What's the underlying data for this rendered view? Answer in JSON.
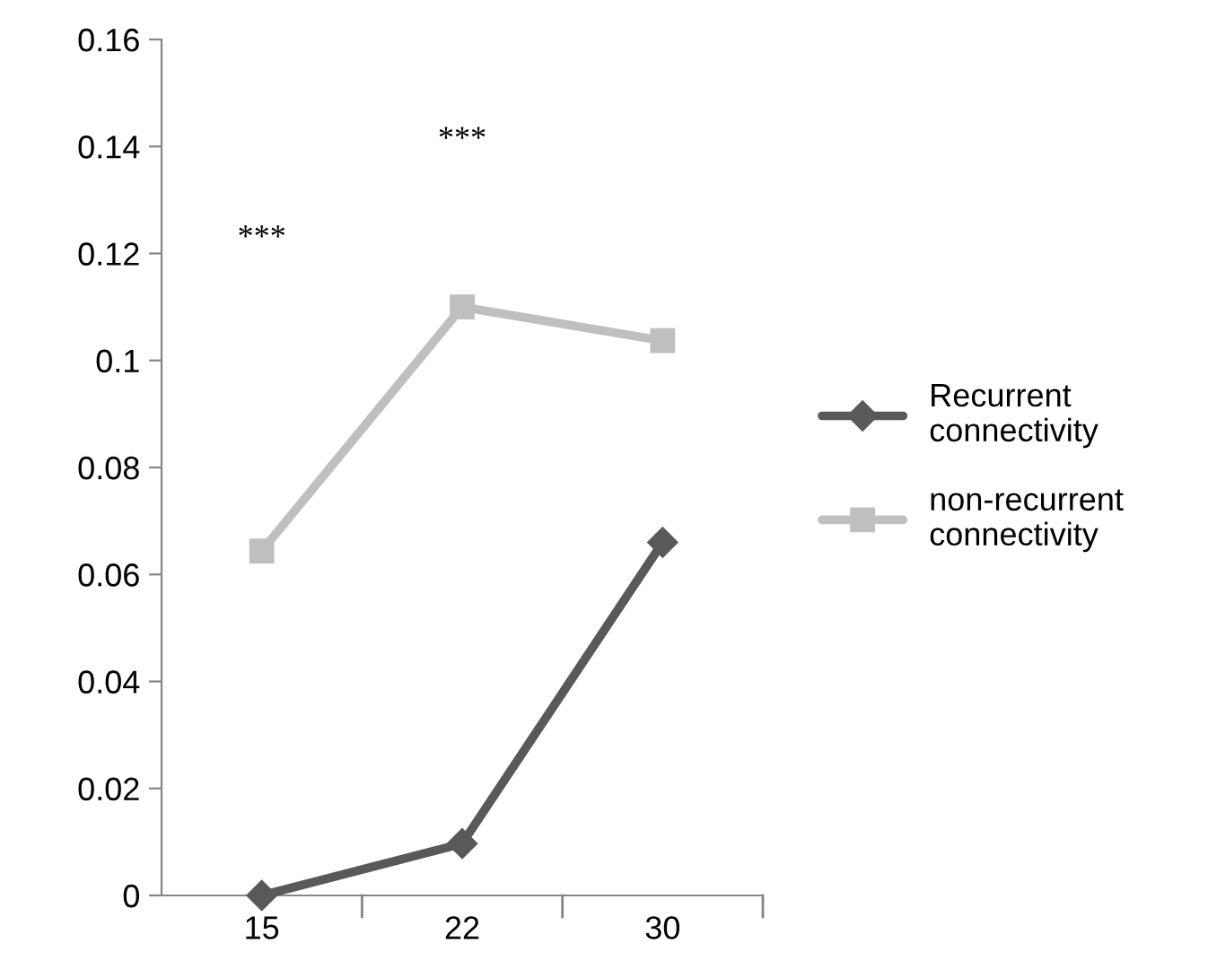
{
  "chart_data": {
    "type": "line",
    "categories": [
      "15",
      "22",
      "30"
    ],
    "series": [
      {
        "name": "Recurrent connectivity",
        "color": "#595959",
        "marker": "diamond",
        "values": [
          0,
          0.0097,
          0.066
        ]
      },
      {
        "name": "non-recurrent connectivity",
        "color": "#bfbfbf",
        "marker": "square",
        "values": [
          0.0644,
          0.11,
          0.1037
        ]
      }
    ],
    "ylim": [
      0,
      0.16
    ],
    "yticks": [
      0,
      0.02,
      0.04,
      0.06,
      0.08,
      0.1,
      0.12,
      0.14,
      0.16
    ],
    "annotations": [
      "***",
      "***"
    ],
    "legend": "right",
    "grid": false,
    "line_style": "solid"
  }
}
